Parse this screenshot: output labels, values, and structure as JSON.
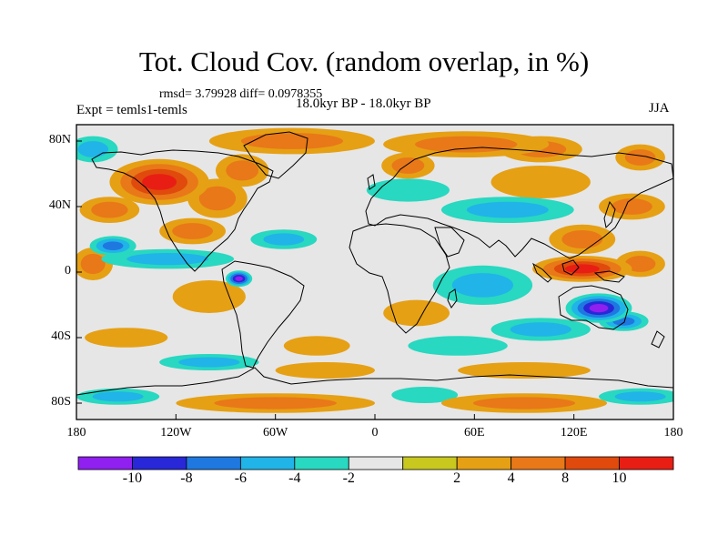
{
  "title": "Tot. Cloud Cov. (random overlap, in %)",
  "stats_line": "rmsd= 3.79928 diff= 0.0978355",
  "experiment": "Expt = temls1-temls",
  "period": "18.0kyr BP - 18.0kyr BP",
  "season": "JJA",
  "lat_ticks": [
    {
      "label": "80N",
      "lat": 80
    },
    {
      "label": "40N",
      "lat": 40
    },
    {
      "label": "0",
      "lat": 0
    },
    {
      "label": "40S",
      "lat": -40
    },
    {
      "label": "80S",
      "lat": -80
    }
  ],
  "lon_ticks": [
    {
      "label": "180",
      "lon": -180
    },
    {
      "label": "120W",
      "lon": -120
    },
    {
      "label": "60W",
      "lon": -60
    },
    {
      "label": "0",
      "lon": 0
    },
    {
      "label": "60E",
      "lon": 60
    },
    {
      "label": "120E",
      "lon": 120
    },
    {
      "label": "180",
      "lon": 180
    }
  ],
  "colorbar": {
    "colors": [
      "#8f20f0",
      "#2828d8",
      "#1f78e0",
      "#20b4e8",
      "#28d8c0",
      "#e6e6e6",
      "#c8c81e",
      "#e6a014",
      "#e87818",
      "#e04a0c",
      "#e81e14"
    ],
    "labels": [
      "-10",
      "-8",
      "-6",
      "-4",
      "-2",
      "2",
      "4",
      "8",
      "10"
    ]
  },
  "colors": {
    "neutral": "#e6e6e6",
    "coast": "#000000"
  },
  "chart_data": {
    "type": "heatmap",
    "title": "Tot. Cloud Cov. (random overlap, in %)",
    "variable": "total cloud cover difference (%)",
    "xlim": [
      -180,
      180
    ],
    "ylim": [
      -90,
      90
    ],
    "levels": [
      -10,
      -8,
      -6,
      -4,
      -2,
      2,
      4,
      8,
      10
    ],
    "features": [
      {
        "lon": -130,
        "lat": 55,
        "dlon": 30,
        "dlat": 14,
        "v": 11
      },
      {
        "lon": -95,
        "lat": 45,
        "dlon": 18,
        "dlat": 12,
        "v": 5
      },
      {
        "lon": -160,
        "lat": 38,
        "dlon": 18,
        "dlat": 8,
        "v": 5
      },
      {
        "lon": -80,
        "lat": 62,
        "dlon": 16,
        "dlat": 10,
        "v": 4
      },
      {
        "lon": -50,
        "lat": 80,
        "dlon": 50,
        "dlat": 8,
        "v": 7
      },
      {
        "lon": 55,
        "lat": 78,
        "dlon": 50,
        "dlat": 8,
        "v": 7
      },
      {
        "lon": 20,
        "lat": 65,
        "dlon": 16,
        "dlat": 8,
        "v": 5
      },
      {
        "lon": 100,
        "lat": 75,
        "dlon": 25,
        "dlat": 8,
        "v": 4
      },
      {
        "lon": 160,
        "lat": 70,
        "dlon": 15,
        "dlat": 8,
        "v": 4
      },
      {
        "lon": -125,
        "lat": 8,
        "dlon": 40,
        "dlat": 6,
        "v": -5
      },
      {
        "lon": -158,
        "lat": 16,
        "dlon": 14,
        "dlat": 6,
        "v": -7
      },
      {
        "lon": -55,
        "lat": 20,
        "dlon": 20,
        "dlat": 6,
        "v": -4
      },
      {
        "lon": -82,
        "lat": -4,
        "dlon": 8,
        "dlat": 5,
        "v": -11
      },
      {
        "lon": -110,
        "lat": 25,
        "dlon": 20,
        "dlat": 8,
        "v": 5
      },
      {
        "lon": -170,
        "lat": 5,
        "dlon": 12,
        "dlat": 10,
        "v": 4
      },
      {
        "lon": -100,
        "lat": -15,
        "dlon": 22,
        "dlat": 10,
        "v": 3
      },
      {
        "lon": 25,
        "lat": -25,
        "dlon": 20,
        "dlat": 8,
        "v": 3
      },
      {
        "lon": 65,
        "lat": -8,
        "dlon": 30,
        "dlat": 12,
        "v": -5
      },
      {
        "lon": 80,
        "lat": 38,
        "dlon": 40,
        "dlat": 8,
        "v": -4
      },
      {
        "lon": 20,
        "lat": 50,
        "dlon": 25,
        "dlat": 7,
        "v": -3
      },
      {
        "lon": 100,
        "lat": 55,
        "dlon": 30,
        "dlat": 10,
        "v": 3
      },
      {
        "lon": 125,
        "lat": 20,
        "dlon": 20,
        "dlat": 9,
        "v": 6
      },
      {
        "lon": 125,
        "lat": 2,
        "dlon": 30,
        "dlat": 8,
        "v": 11
      },
      {
        "lon": 160,
        "lat": 5,
        "dlon": 15,
        "dlat": 8,
        "v": 4
      },
      {
        "lon": 135,
        "lat": -22,
        "dlon": 20,
        "dlat": 9,
        "v": -11
      },
      {
        "lon": 150,
        "lat": -30,
        "dlon": 15,
        "dlat": 6,
        "v": -6
      },
      {
        "lon": 100,
        "lat": -35,
        "dlon": 30,
        "dlat": 7,
        "v": -5
      },
      {
        "lon": 155,
        "lat": 40,
        "dlon": 20,
        "dlat": 8,
        "v": 5
      },
      {
        "lon": -150,
        "lat": -40,
        "dlon": 25,
        "dlat": 6,
        "v": 3
      },
      {
        "lon": -35,
        "lat": -45,
        "dlon": 20,
        "dlat": 6,
        "v": 3
      },
      {
        "lon": 50,
        "lat": -45,
        "dlon": 30,
        "dlat": 6,
        "v": -3
      },
      {
        "lon": -100,
        "lat": -55,
        "dlon": 30,
        "dlat": 5,
        "v": -4
      },
      {
        "lon": -30,
        "lat": -60,
        "dlon": 30,
        "dlat": 5,
        "v": 3
      },
      {
        "lon": 90,
        "lat": -60,
        "dlon": 40,
        "dlat": 5,
        "v": 3
      },
      {
        "lon": -60,
        "lat": -80,
        "dlon": 60,
        "dlat": 6,
        "v": 5
      },
      {
        "lon": 90,
        "lat": -80,
        "dlon": 50,
        "dlat": 6,
        "v": 4
      },
      {
        "lon": 160,
        "lat": -76,
        "dlon": 25,
        "dlat": 5,
        "v": -5
      },
      {
        "lon": -155,
        "lat": -76,
        "dlon": 25,
        "dlat": 5,
        "v": -4
      },
      {
        "lon": 30,
        "lat": -75,
        "dlon": 20,
        "dlat": 5,
        "v": -3
      },
      {
        "lon": -170,
        "lat": 75,
        "dlon": 15,
        "dlat": 8,
        "v": -4
      }
    ]
  }
}
